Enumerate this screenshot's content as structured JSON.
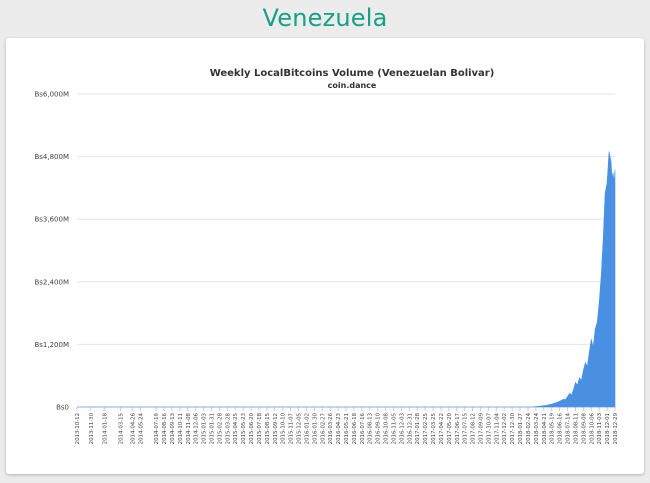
{
  "page": {
    "heading": "Venezuela"
  },
  "chart_data": {
    "type": "area",
    "title": "Weekly LocalBitcoins Volume (Venezuelan Bolivar)",
    "subtitle": "coin.dance",
    "xlabel": "",
    "ylabel": "",
    "ylim": [
      0,
      6000
    ],
    "y_unit": "M Bs",
    "y_ticks": [
      "Bs0",
      "Bs1,200M",
      "Bs2,400M",
      "Bs3,600M",
      "Bs4,800M",
      "Bs6,000M"
    ],
    "y_tick_values": [
      0,
      1200,
      2400,
      3600,
      4800,
      6000
    ],
    "x_tick_labels": [
      "2013-10-12",
      "2013-11-30",
      "2014-01-18",
      "2014-03-15",
      "2014-04-26",
      "2014-05-24",
      "2014-07-19",
      "2014-08-16",
      "2014-09-13",
      "2014-10-11",
      "2014-11-08",
      "2014-12-06",
      "2015-01-03",
      "2015-01-31",
      "2015-02-28",
      "2015-03-28",
      "2015-04-25",
      "2015-05-23",
      "2015-06-20",
      "2015-07-18",
      "2015-08-15",
      "2015-09-12",
      "2015-10-10",
      "2015-11-07",
      "2015-12-05",
      "2016-01-02",
      "2016-01-30",
      "2016-02-27",
      "2016-03-26",
      "2016-04-23",
      "2016-05-21",
      "2016-06-18",
      "2016-07-16",
      "2016-08-13",
      "2016-09-10",
      "2016-10-08",
      "2016-11-05",
      "2016-12-03",
      "2016-12-31",
      "2017-01-28",
      "2017-02-25",
      "2017-03-25",
      "2017-04-22",
      "2017-05-20",
      "2017-06-17",
      "2017-07-15",
      "2017-08-12",
      "2017-09-09",
      "2017-10-07",
      "2017-11-04",
      "2017-12-02",
      "2017-12-30",
      "2018-01-27",
      "2018-02-24",
      "2018-03-24",
      "2018-04-21",
      "2018-05-19",
      "2018-06-16",
      "2018-07-14",
      "2018-08-11",
      "2018-09-08",
      "2018-10-06",
      "2018-11-03",
      "2018-12-01",
      "2018-12-29"
    ],
    "grid": true,
    "legend": "none",
    "series": [
      {
        "color": "#4a90e2",
        "x": [
          "2013-10-12",
          "2018-03-10",
          "2018-04-07",
          "2018-04-28",
          "2018-05-19",
          "2018-06-02",
          "2018-06-16",
          "2018-06-30",
          "2018-07-07",
          "2018-07-14",
          "2018-07-21",
          "2018-07-28",
          "2018-08-04",
          "2018-08-11",
          "2018-08-18",
          "2018-08-25",
          "2018-09-01",
          "2018-09-08",
          "2018-09-15",
          "2018-09-22",
          "2018-09-29",
          "2018-10-06",
          "2018-10-13",
          "2018-10-20",
          "2018-10-27",
          "2018-11-03",
          "2018-11-10",
          "2018-11-17",
          "2018-11-24",
          "2018-12-01",
          "2018-12-08",
          "2018-12-15",
          "2018-12-19",
          "2018-12-22",
          "2018-12-26",
          "2018-12-29"
        ],
        "values": [
          0,
          0,
          15,
          30,
          55,
          80,
          110,
          150,
          140,
          200,
          260,
          230,
          330,
          470,
          420,
          560,
          510,
          700,
          850,
          780,
          1050,
          1300,
          1150,
          1500,
          1620,
          2000,
          2500,
          3200,
          4100,
          4300,
          4900,
          4700,
          4350,
          4500,
          4300,
          4550
        ]
      }
    ]
  }
}
